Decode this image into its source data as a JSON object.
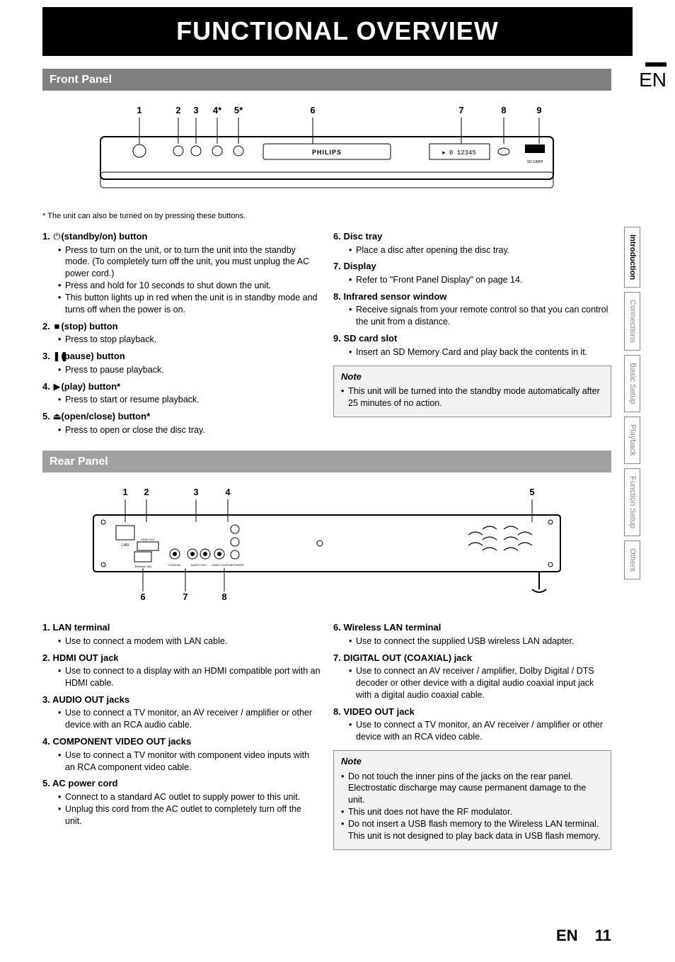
{
  "page_title": "FUNCTIONAL OVERVIEW",
  "lang_badge": "EN",
  "section_front": "Front Panel",
  "section_rear": "Rear Panel",
  "front_diagram": {
    "labels": [
      "1",
      "2",
      "3",
      "4*",
      "5*",
      "6",
      "7",
      "8",
      "9"
    ],
    "brand": "PHILIPS",
    "display_text": "0 12345"
  },
  "rear_diagram": {
    "labels_top": [
      "1",
      "2",
      "3",
      "4",
      "5"
    ],
    "labels_bottom": [
      "6",
      "7",
      "8"
    ]
  },
  "front_footnote": "* The unit can also be turned on by pressing these buttons.",
  "front_items_left": [
    {
      "num": "1.",
      "icon": "⏻",
      "title": "(standby/on) button",
      "bullets": [
        "Press to turn on the unit, or to turn the unit into the standby mode. (To completely turn off the unit, you must unplug the AC power cord.)",
        "Press and hold for 10 seconds to shut down the unit.",
        "This button lights up in red when the unit is in standby mode and turns off when the power is on."
      ]
    },
    {
      "num": "2.",
      "icon": "■",
      "title": "(stop) button",
      "bullets": [
        "Press to stop playback."
      ]
    },
    {
      "num": "3.",
      "icon": "❚❚",
      "title": "(pause) button",
      "bullets": [
        "Press to pause playback."
      ]
    },
    {
      "num": "4.",
      "icon": "▶",
      "title": "(play) button*",
      "bullets": [
        "Press to start or resume playback."
      ]
    },
    {
      "num": "5.",
      "icon": "⏏",
      "title": "(open/close) button*",
      "bullets": [
        "Press to open or close the disc tray."
      ]
    }
  ],
  "front_items_right": [
    {
      "num": "6.",
      "title": "Disc tray",
      "bullets": [
        "Place a disc after opening the disc tray."
      ]
    },
    {
      "num": "7.",
      "title": "Display",
      "bullets": [
        "Refer to \"Front Panel Display\" on page 14."
      ]
    },
    {
      "num": "8.",
      "title": "Infrared sensor window",
      "bullets": [
        "Receive signals from your remote control so that you can control the unit from a distance."
      ]
    },
    {
      "num": "9.",
      "title": "SD card slot",
      "bullets": [
        "Insert an SD Memory Card and play back the contents in it."
      ]
    }
  ],
  "front_note_title": "Note",
  "front_note_items": [
    "This unit will be turned into the standby mode automatically after 25 minutes of no action."
  ],
  "rear_items_left": [
    {
      "num": "1.",
      "title": "LAN terminal",
      "bullets": [
        "Use to connect a modem with LAN cable."
      ]
    },
    {
      "num": "2.",
      "title": "HDMI OUT jack",
      "bullets": [
        "Use to connect to a display with an HDMI compatible port with an HDMI cable."
      ]
    },
    {
      "num": "3.",
      "title": "AUDIO OUT jacks",
      "bullets": [
        "Use to connect a TV monitor, an AV receiver / amplifier or other device with an RCA audio cable."
      ]
    },
    {
      "num": "4.",
      "title": "COMPONENT VIDEO OUT jacks",
      "bullets": [
        "Use to connect a TV monitor with component video inputs with an RCA component video cable."
      ]
    },
    {
      "num": "5.",
      "title": "AC power cord",
      "bullets": [
        "Connect to a standard AC outlet to supply power to this unit.",
        "Unplug this cord from the AC outlet to completely turn off the unit."
      ]
    }
  ],
  "rear_items_right": [
    {
      "num": "6.",
      "title": "Wireless LAN terminal",
      "bullets": [
        "Use to connect the supplied USB wireless LAN adapter."
      ]
    },
    {
      "num": "7.",
      "title": "DIGITAL OUT (COAXIAL) jack",
      "bullets": [
        "Use to connect an AV receiver / amplifier, Dolby Digital / DTS decoder or other device with a digital audio coaxial input jack with a digital audio coaxial cable."
      ]
    },
    {
      "num": "8.",
      "title": "VIDEO OUT jack",
      "bullets": [
        "Use to connect a TV monitor, an AV receiver / amplifier or other device with an RCA video cable."
      ]
    }
  ],
  "rear_note_title": "Note",
  "rear_note_items": [
    "Do not touch the inner pins of the jacks on the rear panel. Electrostatic discharge may cause permanent damage to the unit.",
    "This unit does not have the RF modulator.",
    "Do not insert a USB flash memory to the Wireless LAN terminal. This unit is not designed to play back data in USB flash memory."
  ],
  "tabs": [
    "Introduction",
    "Connections",
    "Basic Setup",
    "Playback",
    "Function Setup",
    "Others"
  ],
  "footer_lang": "EN",
  "footer_page": "11"
}
